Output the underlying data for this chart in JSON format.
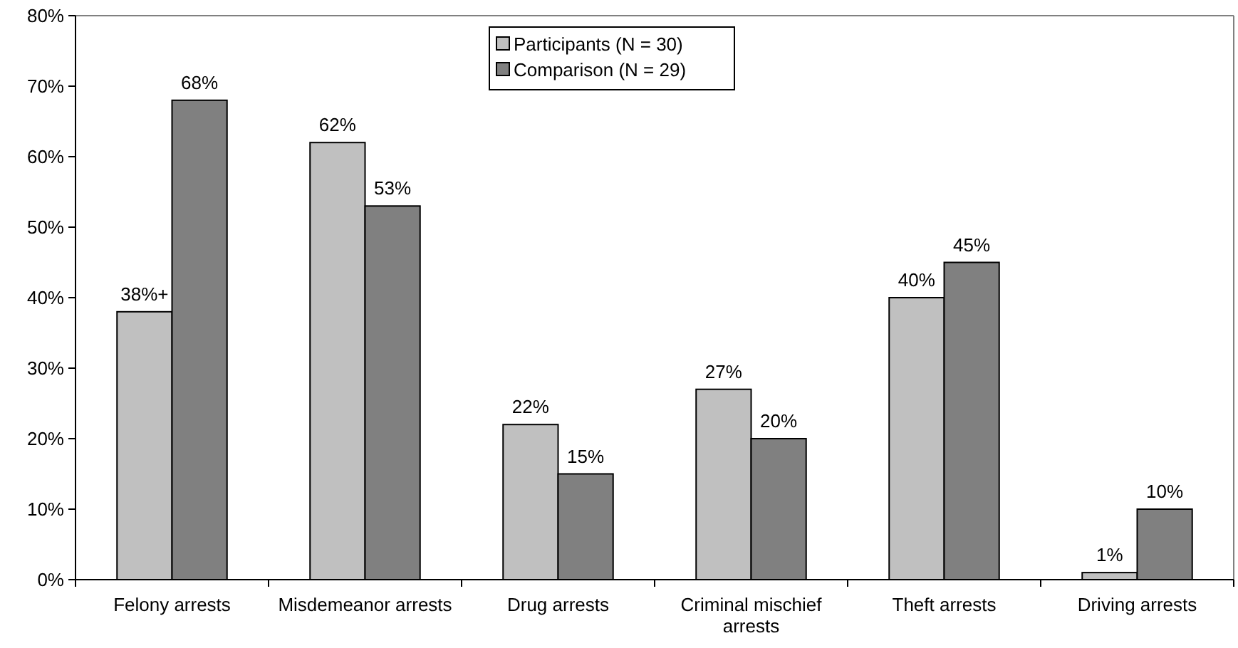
{
  "chart_data": {
    "type": "bar",
    "categories": [
      "Felony arrests",
      "Misdemeanor arrests",
      "Drug arrests",
      "Criminal mischief arrests",
      "Theft arrests",
      "Driving arrests"
    ],
    "series": [
      {
        "name": "Participants (N = 30)",
        "color": "#c0c0c0",
        "values": [
          38,
          62,
          22,
          27,
          40,
          1
        ],
        "value_labels": [
          "38%+",
          "62%",
          "22%",
          "27%",
          "40%",
          "1%"
        ]
      },
      {
        "name": "Comparison (N = 29)",
        "color": "#808080",
        "values": [
          68,
          53,
          15,
          20,
          45,
          10
        ],
        "value_labels": [
          "68%",
          "53%",
          "15%",
          "20%",
          "45%",
          "10%"
        ]
      }
    ],
    "ylim": [
      0,
      80
    ],
    "yticks": [
      {
        "value": 0,
        "label": "0%"
      },
      {
        "value": 10,
        "label": "10%"
      },
      {
        "value": 20,
        "label": "20%"
      },
      {
        "value": 30,
        "label": "30%"
      },
      {
        "value": 40,
        "label": "40%"
      },
      {
        "value": 50,
        "label": "50%"
      },
      {
        "value": 60,
        "label": "60%"
      },
      {
        "value": 70,
        "label": "70%"
      },
      {
        "value": 80,
        "label": "80%"
      }
    ],
    "grid": false,
    "legend": "top"
  }
}
